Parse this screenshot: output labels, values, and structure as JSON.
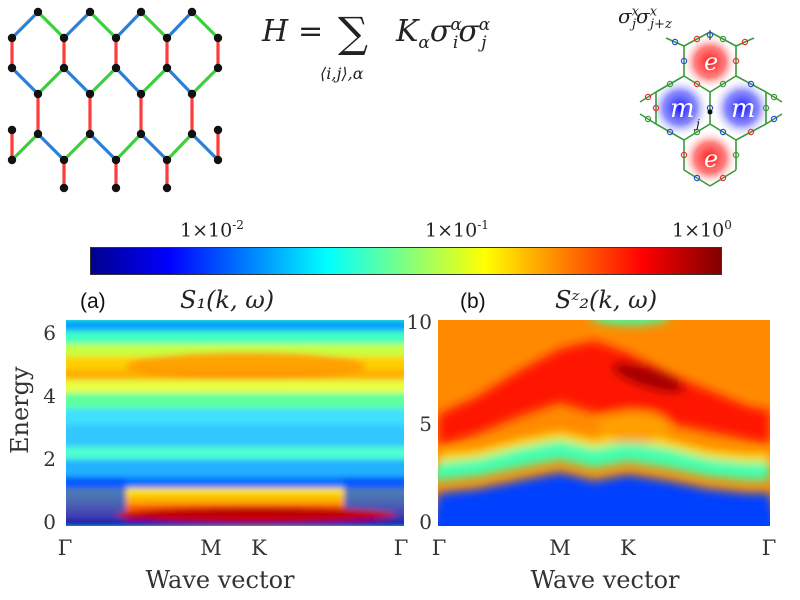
{
  "equation": {
    "lhs": "H",
    "sum_index": "⟨i,j⟩,α",
    "rhs_k": "K",
    "rhs_k_sub": "α",
    "sig1": "σ",
    "sig1_sub": "i",
    "sig1_sup": "α",
    "sig2": "σ",
    "sig2_sub": "j",
    "sig2_sup": "α"
  },
  "vison_diagram": {
    "top_label": "σ",
    "top_label_sub1": "j",
    "top_label_sup1": "x",
    "top_label_sub2": "j+z",
    "top_label_sup2": "x",
    "e_label": "e",
    "m_label": "m",
    "j_label": "j"
  },
  "colorbar": {
    "labels": [
      {
        "base": "1×10",
        "exp": "-2"
      },
      {
        "base": "1×10",
        "exp": "-1"
      },
      {
        "base": "1×10",
        "exp": "0"
      }
    ],
    "colors": [
      "#00008f",
      "#0000ff",
      "#0080ff",
      "#00ffff",
      "#80ff80",
      "#ffff00",
      "#ff8000",
      "#ff0000",
      "#800000"
    ]
  },
  "panel_a": {
    "label": "(a)",
    "title": "S₁(k, ω)",
    "ylabel": "Energy",
    "xlabel": "Wave vector",
    "yticks": [
      "0",
      "2",
      "4",
      "6"
    ],
    "xticks": [
      "Γ",
      "M",
      "K",
      "Γ"
    ]
  },
  "panel_b": {
    "label": "(b)",
    "title": "Sᶻ₂(k, ω)",
    "xlabel": "Wave vector",
    "yticks": [
      "0",
      "5",
      "10"
    ],
    "xticks": [
      "Γ",
      "M",
      "K",
      "Γ"
    ]
  },
  "chart_data": [
    {
      "type": "heatmap",
      "title": "S₁(k, ω)",
      "xlabel": "Wave vector",
      "ylabel": "Energy",
      "x_ticks": [
        "Γ",
        "M",
        "K",
        "Γ"
      ],
      "ylim": [
        0,
        6.5
      ],
      "colorscale": "jet",
      "scale": "log",
      "zlim": [
        0.01,
        1
      ]
    },
    {
      "type": "heatmap",
      "title": "Sᶻ₂(k, ω)",
      "xlabel": "Wave vector",
      "x_ticks": [
        "Γ",
        "M",
        "K",
        "Γ"
      ],
      "ylim": [
        0,
        10
      ],
      "colorscale": "jet",
      "scale": "log",
      "zlim": [
        0.01,
        1
      ]
    }
  ]
}
